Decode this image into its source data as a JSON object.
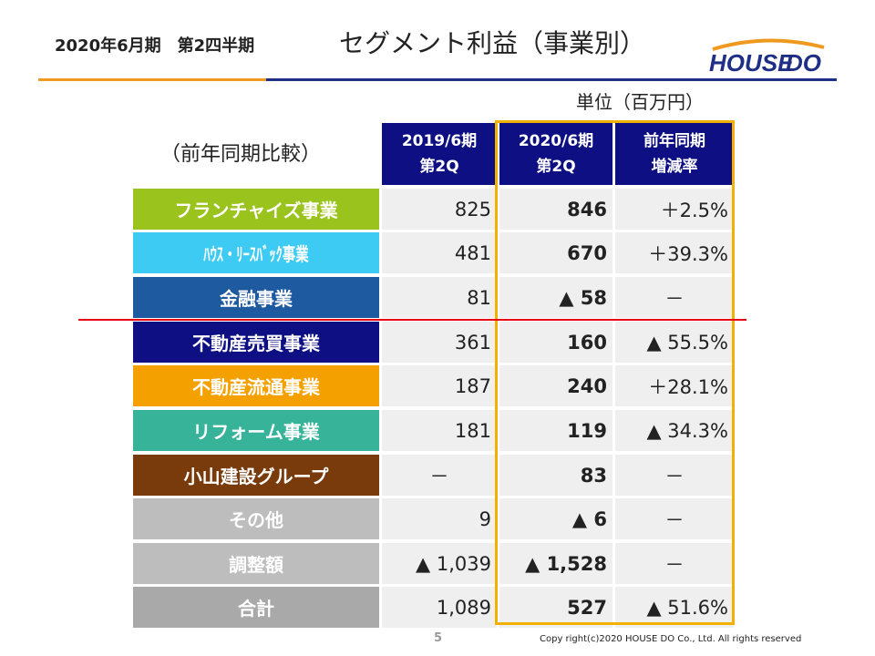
{
  "header": {
    "period": "2020年6月期　第2四半期",
    "title": "セグメント利益（事業別）"
  },
  "logo": {
    "text_house": "HOUSE",
    "text_do": "DO",
    "brand_blue": "#1f2f86",
    "brand_orange": "#ef9a1f"
  },
  "unit_label": "単位（百万円）",
  "compare_label": "（前年同期比較）",
  "columns": [
    {
      "line1": "2019/6期",
      "line2": "第2Q"
    },
    {
      "line1": "2020/6期",
      "line2": "第2Q"
    },
    {
      "line1": "前年同期",
      "line2": "増減率"
    }
  ],
  "rows": [
    {
      "label": "フランチャイズ事業",
      "color": "#9bc31e",
      "y2019": "825",
      "y2020": "846",
      "rate": "＋2.5%"
    },
    {
      "label": "ﾊｳｽ・ﾘｰｽﾊﾞｯｸ事業",
      "color": "#3ecbf3",
      "y2019": "481",
      "y2020": "670",
      "rate": "＋39.3%"
    },
    {
      "label": "金融事業",
      "color": "#1e5aa0",
      "y2019": "81",
      "y2020": "▲ 58",
      "rate": "－"
    },
    {
      "label": "不動産売買事業",
      "color": "#0d0f83",
      "y2019": "361",
      "y2020": "160",
      "rate": "▲ 55.5%"
    },
    {
      "label": "不動産流通事業",
      "color": "#f4a100",
      "y2019": "187",
      "y2020": "240",
      "rate": "＋28.1%"
    },
    {
      "label": "リフォーム事業",
      "color": "#37b39a",
      "y2019": "181",
      "y2020": "119",
      "rate": "▲ 34.3%"
    },
    {
      "label": "小山建設グループ",
      "color": "#7a3b0c",
      "y2019": "－",
      "y2020": "83",
      "rate": "－"
    },
    {
      "label": "その他",
      "color": "#bdbdbd",
      "y2019": "9",
      "y2020": "▲ 6",
      "rate": "－"
    },
    {
      "label": "調整額",
      "color": "#bdbdbd",
      "y2019": "▲ 1,039",
      "y2020": "▲ 1,528",
      "rate": "－"
    },
    {
      "label": "合計",
      "color": "#a9a9a9",
      "y2019": "1,089",
      "y2020": "527",
      "rate": "▲ 51.6%"
    }
  ],
  "highlight_color": "#f2b000",
  "page_number": "5",
  "copyright": "Copy right(c)2020 HOUSE DO Co., Ltd. All rights reserved"
}
